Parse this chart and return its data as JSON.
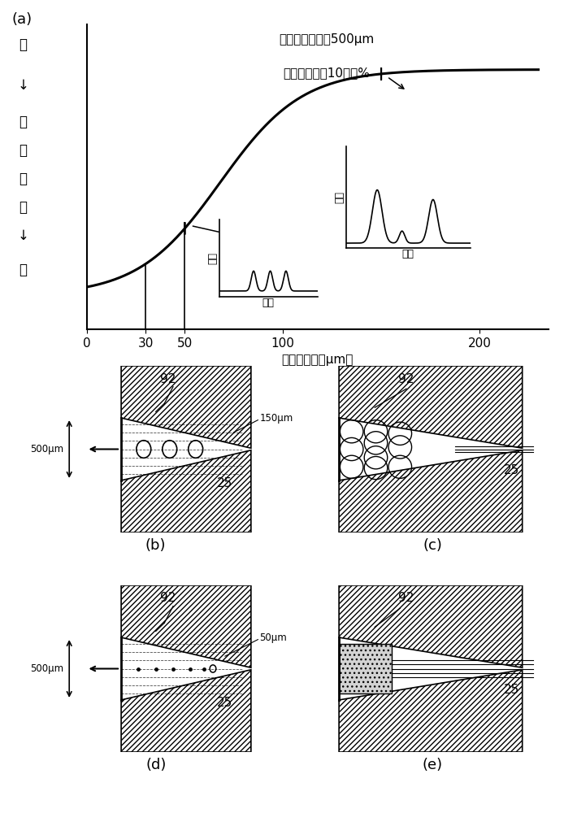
{
  "panel_a_label": "(a)",
  "panel_b_label": "(b)",
  "panel_c_label": "(c)",
  "panel_d_label": "(d)",
  "panel_e_label": "(e)",
  "annotation_line1": "浇口的最小径：500μm",
  "annotation_line2": "木粒的配合：10质量%",
  "ylabel_top": "大",
  "ylabel_mid1": "压",
  "ylabel_mid2": "力",
  "ylabel_mid3": "变",
  "ylabel_mid4": "动",
  "ylabel_bot": "小",
  "xlabel": "木粒的粒径（μm）",
  "inset1_xlabel": "时间",
  "inset1_ylabel": "压力",
  "inset2_xlabel": "时间",
  "inset2_ylabel": "压力",
  "label_92": "92",
  "label_25": "25",
  "label_150um": "150μm",
  "label_50um": "50μm",
  "label_500um_b": "500μm",
  "label_500um_d": "500μm",
  "font_family": "Noto Sans CJK SC"
}
